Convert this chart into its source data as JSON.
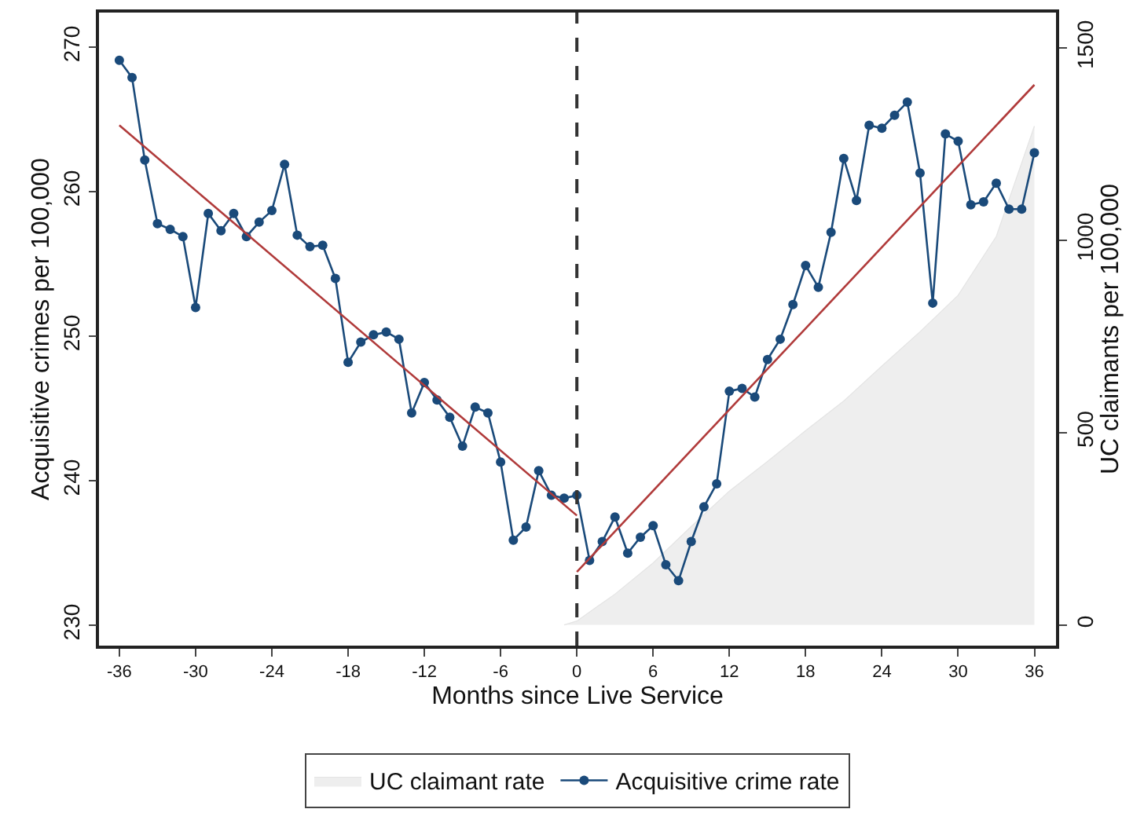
{
  "chart_data": {
    "type": "line",
    "xlabel": "Months since Live Service",
    "ylabel": "Acquisitive crimes per 100,000",
    "y2label": "UC claimants per 100,000",
    "x": [
      -36,
      -35,
      -34,
      -33,
      -32,
      -31,
      -30,
      -29,
      -28,
      -27,
      -26,
      -25,
      -24,
      -23,
      -22,
      -21,
      -20,
      -19,
      -18,
      -17,
      -16,
      -15,
      -14,
      -13,
      -12,
      -11,
      -10,
      -9,
      -8,
      -7,
      -6,
      -5,
      -4,
      -3,
      -2,
      -1,
      0,
      1,
      2,
      3,
      4,
      5,
      6,
      7,
      8,
      9,
      10,
      11,
      12,
      13,
      14,
      15,
      16,
      17,
      18,
      19,
      20,
      21,
      22,
      23,
      24,
      25,
      26,
      27,
      28,
      29,
      30,
      31,
      32,
      33,
      34,
      35,
      36
    ],
    "series": [
      {
        "name": "UC claimant rate",
        "type": "area",
        "axis": "y2",
        "color": "#eeeeee",
        "x": [
          -1,
          0,
          3,
          6,
          9,
          12,
          15,
          18,
          21,
          24,
          27,
          30,
          33,
          36
        ],
        "values": [
          0,
          10,
          80,
          161,
          256,
          348,
          425,
          505,
          582,
          673,
          762,
          857,
          1010,
          1297
        ]
      },
      {
        "name": "Acquisitive crime rate",
        "type": "line",
        "color": "#1a4a7a",
        "marker": "circle",
        "values": [
          269.1,
          267.9,
          262.2,
          257.8,
          257.4,
          256.9,
          252.0,
          258.5,
          257.3,
          258.5,
          256.9,
          257.9,
          258.7,
          261.9,
          257.0,
          256.2,
          256.3,
          254.0,
          248.2,
          249.6,
          250.1,
          250.3,
          249.8,
          244.7,
          246.8,
          245.6,
          244.4,
          242.4,
          245.1,
          244.7,
          241.3,
          235.9,
          236.8,
          240.7,
          239.0,
          238.8,
          239.0,
          234.5,
          235.8,
          237.5,
          235.0,
          236.1,
          236.9,
          234.2,
          233.1,
          235.8,
          238.2,
          239.8,
          246.2,
          246.4,
          245.8,
          248.4,
          249.8,
          252.2,
          254.9,
          253.4,
          257.2,
          262.3,
          259.4,
          264.6,
          264.4,
          265.3,
          266.2,
          261.3,
          252.3,
          264.0,
          263.5,
          259.1,
          259.3,
          260.6,
          258.8,
          258.8,
          262.7
        ]
      },
      {
        "type": "line",
        "color": "#b03a3a",
        "marker": "none",
        "x": [
          -36,
          0
        ],
        "values": [
          264.6,
          237.6
        ]
      },
      {
        "type": "line",
        "color": "#b03a3a",
        "marker": "none",
        "x": [
          0,
          36
        ],
        "values": [
          233.7,
          267.4
        ]
      }
    ],
    "xlim": [
      -37.6,
      37.7
    ],
    "xticks": [
      -36,
      -30,
      -24,
      -18,
      -12,
      -6,
      0,
      6,
      12,
      18,
      24,
      30,
      36
    ],
    "ylim": [
      228.6,
      272.4
    ],
    "yticks": [
      230,
      240,
      250,
      260,
      270
    ],
    "y2lim": [
      -54,
      1592
    ],
    "y2ticks": [
      0,
      500,
      1000,
      1500
    ],
    "ref_lines": [
      {
        "axis": "x",
        "value": 0,
        "color": "#333333",
        "line_style": "dashed"
      }
    ],
    "grid": false,
    "legend": "bottom"
  }
}
